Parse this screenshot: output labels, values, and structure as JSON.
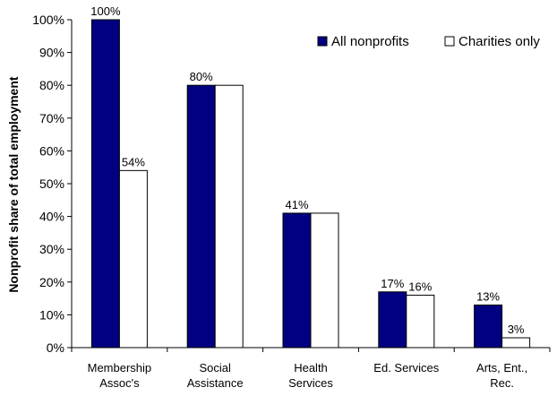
{
  "chart_data": {
    "type": "bar",
    "title": "",
    "xlabel": "",
    "ylabel": "Nonprofit share of total employment",
    "ylim": [
      0,
      100
    ],
    "ytick_step": 10,
    "y_unit": "%",
    "grid": false,
    "legend_position": "top-right",
    "categories": [
      [
        "Membership",
        "Assoc's"
      ],
      [
        "Social",
        "Assistance"
      ],
      [
        "Health",
        "Services"
      ],
      [
        "Ed. Services"
      ],
      [
        "Arts, Ent.,",
        "Rec."
      ]
    ],
    "series": [
      {
        "name": "All nonprofits",
        "color": "#000080",
        "values": [
          100,
          80,
          41,
          17,
          13
        ],
        "labels": [
          "100%",
          "80%",
          "41%",
          "17%",
          "13%"
        ]
      },
      {
        "name": "Charities only",
        "color": "#ffffff",
        "values": [
          54,
          80,
          41,
          16,
          3
        ],
        "labels": [
          "54%",
          "",
          "",
          "16%",
          "3%"
        ]
      }
    ]
  }
}
